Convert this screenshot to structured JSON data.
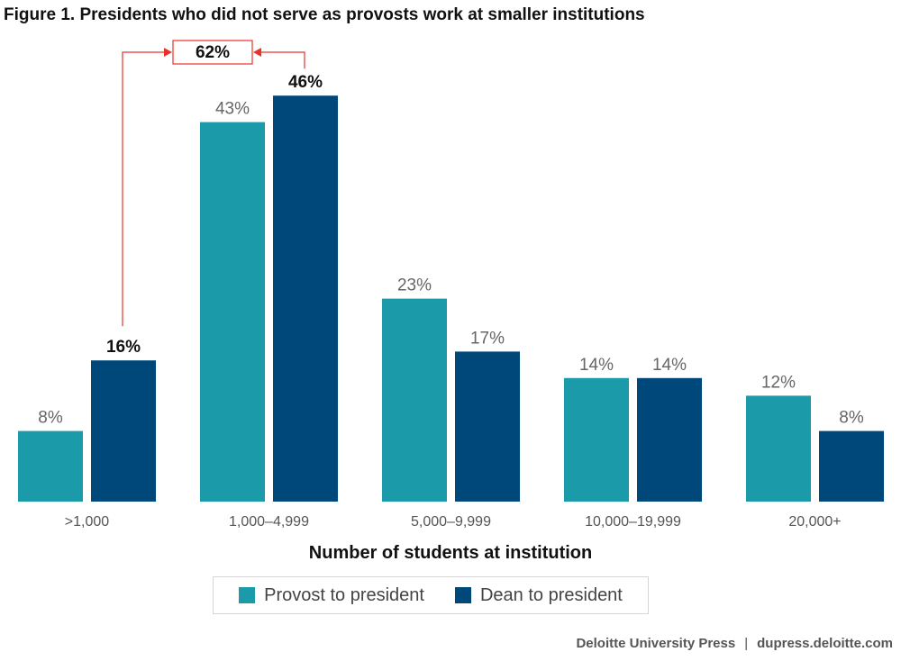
{
  "title": "Figure 1. Presidents who did not serve as provosts work at smaller institutions",
  "chart_data": {
    "type": "bar",
    "title": "Figure 1. Presidents who did not serve as provosts work at smaller institutions",
    "xlabel": "Number of students at institution",
    "ylabel": "",
    "categories": [
      ">1,000",
      "1,000–4,999",
      "5,000–9,999",
      "10,000–19,999",
      "20,000+"
    ],
    "series": [
      {
        "name": "Provost to president",
        "values": [
          8,
          43,
          23,
          14,
          12
        ],
        "color": "#1b9aaa"
      },
      {
        "name": "Dean to president",
        "values": [
          16,
          46,
          17,
          14,
          8
        ],
        "color": "#00477a"
      }
    ],
    "data_labels": [
      [
        "8%",
        "43%",
        "23%",
        "14%",
        "12%"
      ],
      [
        "16%",
        "46%",
        "17%",
        "14%",
        "8%"
      ]
    ],
    "ylim": [
      0,
      46
    ],
    "grid": false,
    "legend": "bottom-center",
    "annotation": {
      "text": "62%",
      "from_category": ">1,000",
      "to_category": "1,000–4,999",
      "series": "Dean to president",
      "color": "#e8322c"
    }
  },
  "footer": {
    "publisher": "Deloitte University Press",
    "separator": "|",
    "url": "dupress.deloitte.com"
  }
}
